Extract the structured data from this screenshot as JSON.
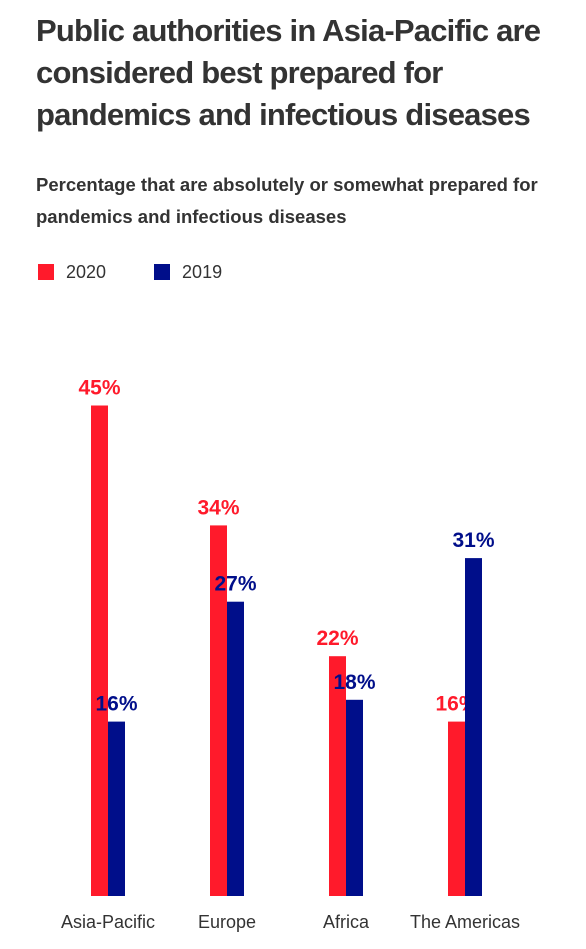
{
  "title": "Public authorities in Asia-Pacific are considered best prepared for pandemics and infectious diseases",
  "subtitle": "Percentage that are absolutely or somewhat prepared for pandemics and infectious diseases",
  "colors": {
    "2020": "#ff1a2b",
    "2019": "#000e8a",
    "text": "#333333"
  },
  "legend": [
    {
      "label": "2020",
      "color": "#ff1a2b"
    },
    {
      "label": "2019",
      "color": "#000e8a"
    }
  ],
  "chart_data": {
    "type": "bar",
    "title": "Public authorities in Asia-Pacific are considered best prepared for pandemics and infectious diseases",
    "subtitle": "Percentage that are absolutely or somewhat prepared for pandemics and infectious diseases",
    "categories": [
      "Asia-Pacific",
      "Europe",
      "Africa",
      "The Americas"
    ],
    "series": [
      {
        "name": "2020",
        "color": "#ff1a2b",
        "values": [
          45,
          34,
          22,
          16
        ],
        "labels": [
          "45%",
          "34%",
          "22%",
          "16%"
        ]
      },
      {
        "name": "2019",
        "color": "#000e8a",
        "values": [
          16,
          27,
          18,
          31
        ],
        "labels": [
          "16%",
          "27%",
          "18%",
          "31%"
        ]
      }
    ],
    "ylim": [
      0,
      45
    ],
    "value_suffix": "%",
    "grid": false,
    "legend_position": "top-left"
  }
}
